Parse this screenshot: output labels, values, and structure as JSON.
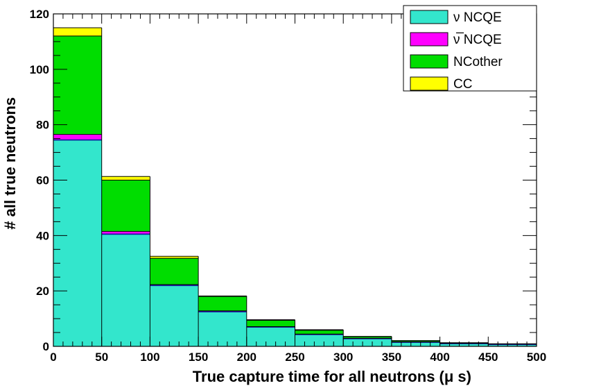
{
  "chart_data": {
    "type": "bar",
    "stacked": true,
    "histogram": true,
    "bin_edges": [
      0,
      50,
      100,
      150,
      200,
      250,
      300,
      350,
      400,
      450,
      500
    ],
    "xlabel": "True capture time for all neutrons (μ s)",
    "ylabel": "# all true neutrons",
    "xlim": [
      0,
      500
    ],
    "ylim": [
      0,
      120
    ],
    "x_ticks": [
      "0",
      "50",
      "100",
      "150",
      "200",
      "250",
      "300",
      "350",
      "400",
      "450",
      "500"
    ],
    "y_ticks": [
      "0",
      "20",
      "40",
      "60",
      "80",
      "100",
      "120"
    ],
    "x_tick_values": [
      0,
      50,
      100,
      150,
      200,
      250,
      300,
      350,
      400,
      450,
      500
    ],
    "y_tick_values": [
      0,
      20,
      40,
      60,
      80,
      100,
      120
    ],
    "legend_position": "top-right",
    "grid": false,
    "series": [
      {
        "name": "ν NCQE",
        "color": "#33e6cc",
        "values": [
          74.5,
          40.5,
          22.0,
          12.5,
          7.0,
          4.3,
          2.8,
          1.5,
          1.0,
          0.7
        ]
      },
      {
        "name": "ν̅ NCQE",
        "color": "#ff00ff",
        "values": [
          2.0,
          1.0,
          0.3,
          0.3,
          0.1,
          0.1,
          0.1,
          0.1,
          0.1,
          0.1
        ]
      },
      {
        "name": "NCother",
        "color": "#00dd00",
        "values": [
          35.5,
          18.5,
          9.5,
          5.2,
          2.3,
          1.4,
          0.6,
          0.4,
          0.1,
          0.1
        ]
      },
      {
        "name": "CC",
        "color": "#ffff00",
        "values": [
          3.0,
          1.3,
          0.7,
          0.2,
          0.2,
          0.2,
          0.1,
          0.1,
          0.1,
          0.0
        ]
      }
    ]
  }
}
